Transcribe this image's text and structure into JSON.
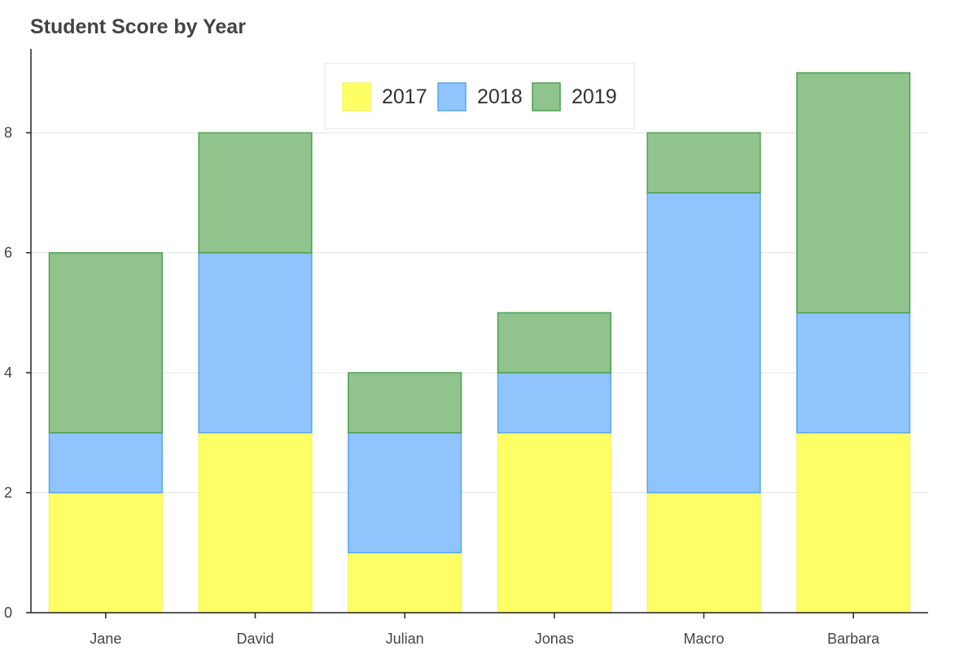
{
  "chart_data": {
    "type": "bar",
    "stacked": true,
    "title": "Student Score by Year",
    "xlabel": "",
    "ylabel": "",
    "categories": [
      "Jane",
      "David",
      "Julian",
      "Jonas",
      "Macro",
      "Barbara"
    ],
    "series": [
      {
        "name": "2017",
        "values": [
          2,
          3,
          1,
          3,
          2,
          3
        ],
        "color": "#ffff66",
        "stroke": "#f5f566"
      },
      {
        "name": "2018",
        "values": [
          1,
          3,
          2,
          1,
          5,
          2
        ],
        "color": "#8fc4fd",
        "stroke": "#5aa6e8"
      },
      {
        "name": "2019",
        "values": [
          3,
          2,
          1,
          1,
          1,
          4
        ],
        "color": "#91c48d",
        "stroke": "#4d9e52"
      }
    ],
    "ylim": [
      0,
      9.4
    ],
    "yticks": [
      0,
      2,
      4,
      6,
      8
    ],
    "grid": "horizontal",
    "legend": "top-center"
  }
}
